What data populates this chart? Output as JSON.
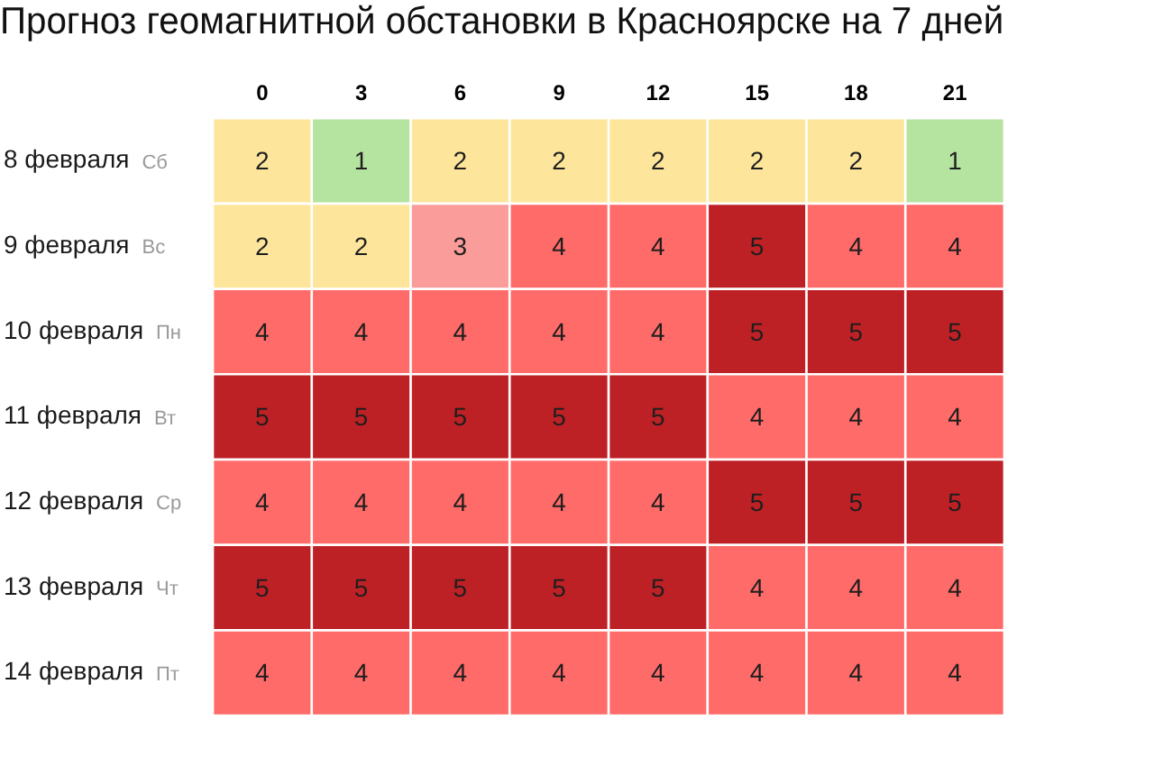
{
  "chart_data": {
    "type": "heatmap",
    "title": "Прогноз геомагнитной обстановки в Красноярске на 7 дней",
    "categories": [
      "0",
      "3",
      "6",
      "9",
      "12",
      "15",
      "18",
      "21"
    ],
    "y_categories": [
      "8 февраля",
      "9 февраля",
      "10 февраля",
      "11 февраля",
      "12 февраля",
      "13 февраля",
      "14 февраля"
    ],
    "y2_categories": [
      "Сб",
      "Вс",
      "Пн",
      "Вт",
      "Ср",
      "Чт",
      "Пт"
    ],
    "cells": [
      [
        2,
        1,
        2,
        2,
        2,
        2,
        2,
        1
      ],
      [
        2,
        2,
        3,
        4,
        4,
        5,
        4,
        4
      ],
      [
        4,
        4,
        4,
        4,
        4,
        5,
        5,
        5
      ],
      [
        5,
        5,
        5,
        5,
        5,
        4,
        4,
        4
      ],
      [
        4,
        4,
        4,
        4,
        4,
        5,
        5,
        5
      ],
      [
        5,
        5,
        5,
        5,
        5,
        4,
        4,
        4
      ],
      [
        4,
        4,
        4,
        4,
        4,
        4,
        4,
        4
      ]
    ],
    "colors": [
      [
        "#fde69c",
        "#b5e3a0",
        "#fde69c",
        "#fde69c",
        "#fde69c",
        "#fde69c",
        "#fde69c",
        "#b5e3a0"
      ],
      [
        "#fde69c",
        "#fde69c",
        "#f99c9a",
        "#ff6b69",
        "#ff6b69",
        "#bd2125",
        "#ff6b69",
        "#ff6b69"
      ],
      [
        "#ff6b69",
        "#ff6b69",
        "#ff6b69",
        "#ff6b69",
        "#ff6b69",
        "#bd2125",
        "#bd2125",
        "#bd2125"
      ],
      [
        "#bd2125",
        "#bd2125",
        "#bd2125",
        "#bd2125",
        "#bd2125",
        "#ff6b69",
        "#ff6b69",
        "#ff6b69"
      ],
      [
        "#ff6b69",
        "#ff6b69",
        "#ff6b69",
        "#ff6b69",
        "#ff6b69",
        "#bd2125",
        "#bd2125",
        "#bd2125"
      ],
      [
        "#bd2125",
        "#bd2125",
        "#bd2125",
        "#bd2125",
        "#bd2125",
        "#ff6b69",
        "#ff6b69",
        "#ff6b69"
      ],
      [
        "#ff6b69",
        "#ff6b69",
        "#ff6b69",
        "#ff6b69",
        "#ff6b69",
        "#ff6b69",
        "#ff6b69",
        "#ff6b69"
      ]
    ],
    "data_labels": true
  }
}
